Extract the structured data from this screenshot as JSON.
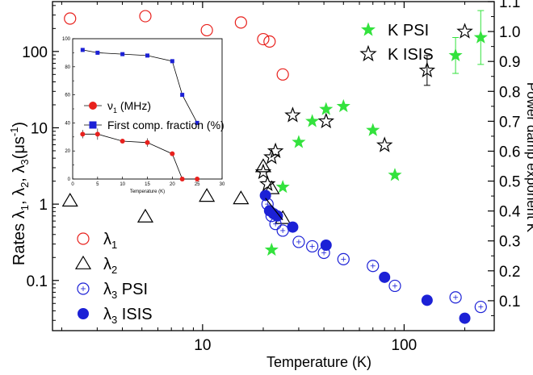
{
  "chart_data": [
    {
      "type": "scatter",
      "xlabel": "Temperature (K)",
      "ylabel_left": "Rates λ1, λ2, λ3(μs⁻¹)",
      "ylabel_right": "Power damp exponent K",
      "x_scale": "log",
      "y_left_scale": "log",
      "xlim": [
        1.8,
        280
      ],
      "ylim_left": [
        0.022,
        450
      ],
      "ylim_right": [
        0.0,
        1.1
      ],
      "x_ticks": [
        {
          "v": 10,
          "label": "10"
        },
        {
          "v": 100,
          "label": "100"
        }
      ],
      "y_left_ticks": [
        {
          "v": 0.1,
          "label": "0.1"
        },
        {
          "v": 1,
          "label": "1"
        },
        {
          "v": 10,
          "label": "10"
        },
        {
          "v": 100,
          "label": "100"
        }
      ],
      "y_right_ticks": [
        {
          "v": 0.1,
          "label": "0.1"
        },
        {
          "v": 0.2,
          "label": "0.2"
        },
        {
          "v": 0.3,
          "label": "0.3"
        },
        {
          "v": 0.4,
          "label": "0.4"
        },
        {
          "v": 0.5,
          "label": "0.5"
        },
        {
          "v": 0.6,
          "label": "0.6"
        },
        {
          "v": 0.7,
          "label": "0.7"
        },
        {
          "v": 0.8,
          "label": "0.8"
        },
        {
          "v": 0.9,
          "label": "0.9"
        },
        {
          "v": 1.0,
          "label": "1.0"
        },
        {
          "v": 1.1,
          "label": "1.1"
        }
      ],
      "legend_left": {
        "position": "bottom-left",
        "entries": [
          {
            "symbol": "λ",
            "subscript": "1",
            "suffix": "",
            "marker": "open-circle",
            "color": "#e8211d"
          },
          {
            "symbol": "λ",
            "subscript": "2",
            "suffix": "",
            "marker": "open-triangle",
            "color": "#000000"
          },
          {
            "symbol": "λ",
            "subscript": "3",
            "suffix": " PSI",
            "marker": "open-circle-cross",
            "color": "#1c21d6"
          },
          {
            "symbol": "λ",
            "subscript": "3",
            "suffix": " ISIS",
            "marker": "filled-circle",
            "color": "#1c21d6"
          }
        ]
      },
      "legend_right": {
        "position": "top-right",
        "entries": [
          {
            "label": "K  PSI",
            "marker": "filled-star",
            "color": "#33e23d"
          },
          {
            "label": "K  ISIS",
            "marker": "open-star",
            "color": "#000000"
          }
        ]
      },
      "series": [
        {
          "name": "λ1",
          "axis": "left",
          "marker": "open-circle",
          "color": "#e8211d",
          "x": [
            2.2,
            5.2,
            10.5,
            15.5,
            20,
            21.5,
            25
          ],
          "y": [
            270,
            290,
            190,
            240,
            145,
            135,
            50
          ]
        },
        {
          "name": "λ2",
          "axis": "left",
          "marker": "open-triangle",
          "color": "#000000",
          "x": [
            2.2,
            5.2,
            10.5,
            15.5,
            20,
            22,
            25
          ],
          "y": [
            1.1,
            0.68,
            1.27,
            1.18,
            3.1,
            1.6,
            0.65
          ]
        },
        {
          "name": "λ3 PSI",
          "axis": "left",
          "marker": "open-circle-cross",
          "color": "#1c21d6",
          "x": [
            21,
            22,
            23,
            25,
            30,
            35,
            40,
            50,
            70,
            90,
            180,
            240
          ],
          "y": [
            1.0,
            0.7,
            0.55,
            0.45,
            0.32,
            0.28,
            0.23,
            0.19,
            0.155,
            0.085,
            0.06,
            0.045
          ]
        },
        {
          "name": "λ3 ISIS",
          "axis": "left",
          "marker": "filled-circle",
          "color": "#1c21d6",
          "x": [
            20.5,
            21.5,
            22.5,
            23.5,
            28,
            41,
            80,
            130,
            200
          ],
          "y": [
            1.3,
            0.82,
            0.75,
            0.7,
            0.5,
            0.29,
            0.11,
            0.055,
            0.032
          ]
        },
        {
          "name": "K PSI",
          "axis": "right",
          "marker": "filled-star",
          "color": "#33e23d",
          "x": [
            22,
            25,
            30,
            35,
            41,
            50,
            70,
            90,
            180,
            240
          ],
          "y": [
            0.27,
            0.48,
            0.63,
            0.7,
            0.74,
            0.75,
            0.67,
            0.52,
            0.92,
            0.98
          ],
          "err": [
            0,
            0,
            0,
            0,
            0,
            0,
            0,
            0,
            0.06,
            0.09
          ]
        },
        {
          "name": "K ISIS",
          "axis": "right",
          "marker": "open-star",
          "color": "#000000",
          "x": [
            20,
            21,
            22,
            23,
            28,
            41,
            80,
            130,
            200
          ],
          "y": [
            0.53,
            0.49,
            0.58,
            0.6,
            0.72,
            0.7,
            0.62,
            0.87,
            1.0
          ],
          "err": [
            0,
            0,
            0,
            0,
            0,
            0,
            0,
            0.05,
            0
          ]
        },
        {
          "name": "",
          "axis": "left",
          "marker": "line",
          "color": "#000000",
          "x": [
            20.5,
            25
          ],
          "y": [
            1.2,
            0.62
          ]
        }
      ]
    },
    {
      "type": "line",
      "position": "inset",
      "xlabel": "Temperature (K)",
      "xlim": [
        0,
        30
      ],
      "ylim": [
        0,
        100
      ],
      "x_ticks": [
        0,
        5,
        10,
        15,
        20,
        25,
        30
      ],
      "y_ticks": [
        0,
        10,
        20,
        30,
        40,
        50,
        60,
        70,
        80,
        90,
        100
      ],
      "legend": {
        "position": "center-left",
        "entries": [
          {
            "label": "ν",
            "subscript": "1",
            "suffix": " (MHz)",
            "marker": "filled-circle",
            "color": "#e8211d"
          },
          {
            "label": "First comp. fraction (%)",
            "subscript": "",
            "suffix": "",
            "marker": "filled-square",
            "color": "#1c21d6"
          }
        ]
      },
      "series": [
        {
          "name": "ν1 (MHz)",
          "color": "#e8211d",
          "marker": "filled-circle",
          "x": [
            2,
            5,
            10,
            15,
            20,
            22,
            25
          ],
          "y": [
            32,
            32,
            27,
            26,
            18,
            0,
            0
          ],
          "err": [
            3,
            4,
            0,
            3,
            0,
            0,
            0
          ]
        },
        {
          "name": "First comp. fraction (%)",
          "color": "#1c21d6",
          "marker": "filled-square",
          "x": [
            2,
            5,
            10,
            15,
            20,
            22,
            25
          ],
          "y": [
            92,
            90,
            89,
            88,
            84,
            60,
            40
          ]
        }
      ]
    }
  ]
}
